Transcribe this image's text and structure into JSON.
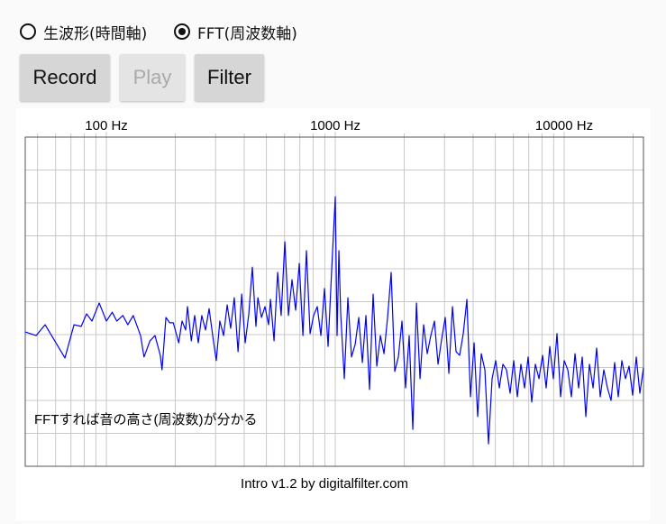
{
  "radio_options": [
    {
      "label": "生波形(時間軸)",
      "selected": false
    },
    {
      "label": "FFT(周波数軸)",
      "selected": true
    }
  ],
  "buttons": [
    {
      "label": "Record",
      "enabled": true
    },
    {
      "label": "Play",
      "enabled": false
    },
    {
      "label": "Filter",
      "enabled": true
    }
  ],
  "chart_data": {
    "type": "line",
    "annotation": "FFTすれば音の高さ(周波数)が分かる",
    "color": "#0000ff",
    "log_x": true,
    "grid": true,
    "xlim": [
      44.2,
      22200
    ],
    "ylim": [
      0,
      10
    ],
    "xticks": [
      {
        "value": 100,
        "label": "100 Hz"
      },
      {
        "value": 1000,
        "label": "1000 Hz"
      },
      {
        "value": 10000,
        "label": "10000 Hz"
      }
    ],
    "x_minor_ticks": [
      50,
      60,
      70,
      80,
      90,
      200,
      300,
      400,
      500,
      600,
      700,
      800,
      900,
      2000,
      3000,
      4000,
      5000,
      6000,
      7000,
      8000,
      9000,
      20000
    ],
    "yticks": [
      0,
      1,
      2,
      3,
      4,
      5,
      6,
      7,
      8,
      9,
      10
    ],
    "x": [
      44.2,
      49.3,
      54.0,
      65.9,
      72.2,
      77.6,
      81.9,
      86.5,
      93.0,
      100,
      106,
      111,
      118,
      124,
      131,
      141,
      146,
      155,
      163,
      172,
      175,
      182,
      189,
      196,
      207,
      214,
      222,
      226,
      235,
      243,
      252,
      261,
      271,
      281,
      292,
      302,
      313,
      325,
      337,
      349,
      362,
      376,
      390,
      404,
      419,
      434,
      450,
      459,
      476,
      493,
      511,
      521,
      540,
      560,
      580,
      602,
      624,
      647,
      671,
      696,
      722,
      748,
      776,
      804,
      834,
      865,
      897,
      930,
      964,
      1000,
      1018,
      1037,
      1056,
      1095,
      1135,
      1177,
      1221,
      1266,
      1313,
      1361,
      1411,
      1463,
      1518,
      1574,
      1632,
      1692,
      1754,
      1819,
      1886,
      1956,
      2028,
      2103,
      2181,
      2262,
      2345,
      2432,
      2521,
      2614,
      2711,
      2811,
      2915,
      3022,
      3134,
      3250,
      3370,
      3494,
      3623,
      3757,
      3896,
      4040,
      4188,
      4343,
      4503,
      4670,
      4842,
      5021,
      5206,
      5398,
      5598,
      5804,
      6018,
      6241,
      6471,
      6710,
      6958,
      7215,
      7482,
      7758,
      8044,
      8341,
      8650,
      8969,
      9300,
      9644,
      10000,
      10370,
      10750,
      11150,
      11560,
      11990,
      12430,
      12890,
      13370,
      13860,
      14370,
      14900,
      15450,
      16020,
      16610,
      17230,
      17860,
      18520,
      19210,
      19910,
      20650,
      21410,
      22200
    ],
    "values": [
      4.08,
      3.97,
      4.3,
      3.29,
      4.3,
      4.25,
      4.63,
      4.41,
      4.96,
      4.41,
      4.68,
      4.41,
      4.58,
      4.3,
      4.58,
      3.97,
      3.32,
      3.81,
      3.97,
      3.37,
      2.93,
      4.52,
      4.36,
      4.36,
      3.75,
      4.41,
      4.14,
      4.85,
      3.81,
      4.58,
      3.75,
      4.58,
      4.14,
      4.79,
      3.92,
      3.21,
      4.41,
      3.97,
      4.9,
      4.19,
      5.12,
      3.48,
      5.23,
      3.75,
      4.63,
      6.05,
      4.25,
      5.12,
      4.52,
      4.85,
      4.3,
      5.07,
      3.81,
      5.89,
      4.58,
      6.82,
      4.58,
      5.67,
      4.74,
      6.16,
      3.97,
      6.55,
      4.03,
      4.58,
      4.85,
      3.97,
      5.4,
      3.64,
      5.95,
      8.19,
      3.97,
      6.55,
      4.63,
      2.66,
      5.12,
      3.32,
      3.7,
      4.52,
      3.15,
      4.58,
      2.33,
      5.23,
      3.04,
      3.97,
      3.42,
      4.52,
      5.89,
      2.88,
      3.32,
      4.41,
      2.38,
      3.97,
      1.12,
      4.96,
      2.66,
      4.3,
      3.42,
      3.97,
      4.41,
      3.1,
      3.86,
      4.52,
      2.82,
      4.85,
      3.48,
      3.37,
      4.03,
      5.07,
      2.11,
      3.75,
      1.51,
      3.42,
      2.93,
      0.68,
      2.66,
      3.21,
      2.38,
      3.1,
      2.93,
      2.22,
      3.21,
      2.11,
      3.1,
      2.38,
      3.32,
      1.95,
      3.1,
      2.66,
      3.37,
      2.38,
      3.64,
      2.66,
      4.03,
      2.11,
      3.21,
      2.93,
      2.11,
      3.42,
      2.38,
      3.32,
      1.51,
      3.1,
      2.38,
      3.59,
      2.11,
      2.93,
      2.38,
      2.0,
      3.15,
      2.11,
      3.21,
      2.66,
      3.04,
      2.16,
      3.32,
      2.22,
      2.99
    ]
  },
  "footer": "Intro v1.2 by digitalfilter.com"
}
